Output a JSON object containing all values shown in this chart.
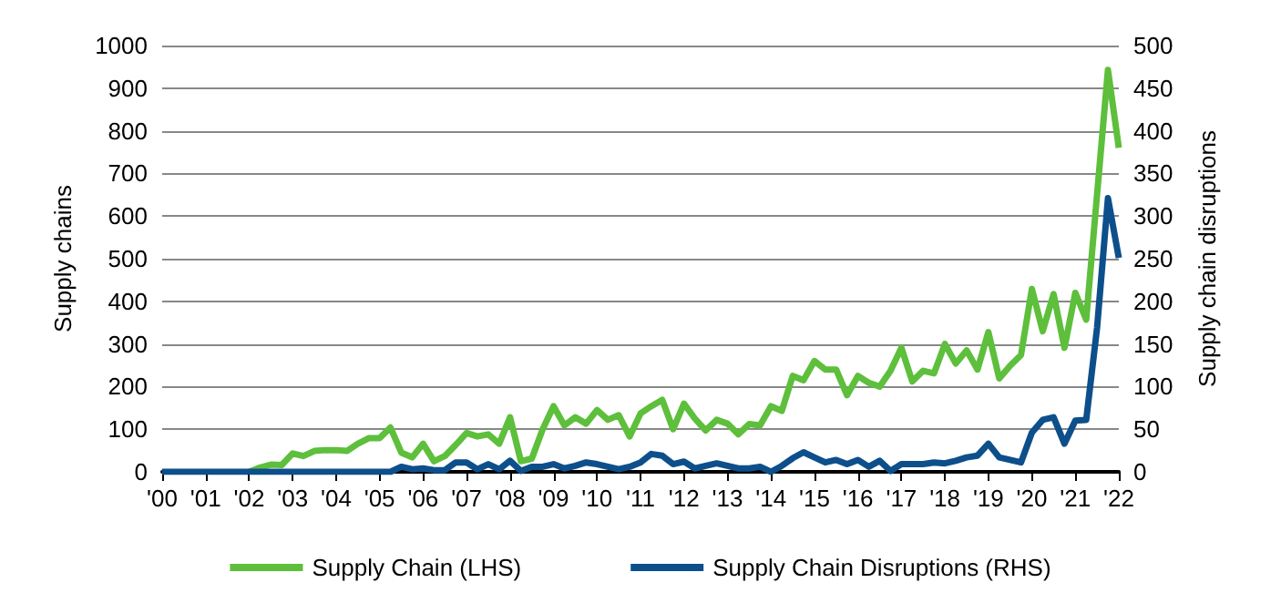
{
  "chart_data": {
    "type": "line",
    "ylabel": "Supply chains",
    "y2label": "Supply chain disruptions",
    "x": [
      2000,
      2000.25,
      2000.5,
      2000.75,
      2001,
      2001.25,
      2001.5,
      2001.75,
      2002,
      2002.25,
      2002.5,
      2002.75,
      2003,
      2003.25,
      2003.5,
      2003.75,
      2004,
      2004.25,
      2004.5,
      2004.75,
      2005,
      2005.25,
      2005.5,
      2005.75,
      2006,
      2006.25,
      2006.5,
      2006.75,
      2007,
      2007.25,
      2007.5,
      2007.75,
      2008,
      2008.25,
      2008.5,
      2008.75,
      2009,
      2009.25,
      2009.5,
      2009.75,
      2010,
      2010.25,
      2010.5,
      2010.75,
      2011,
      2011.25,
      2011.5,
      2011.75,
      2012,
      2012.25,
      2012.5,
      2012.75,
      2013,
      2013.25,
      2013.5,
      2013.75,
      2014,
      2014.25,
      2014.5,
      2014.75,
      2015,
      2015.25,
      2015.5,
      2015.75,
      2016,
      2016.25,
      2016.5,
      2016.75,
      2017,
      2017.25,
      2017.5,
      2017.75,
      2018,
      2018.25,
      2018.5,
      2018.75,
      2019,
      2019.25,
      2019.5,
      2019.75,
      2020,
      2020.25,
      2020.5,
      2020.75,
      2021,
      2021.25,
      2021.5,
      2021.75,
      2022
    ],
    "series": [
      {
        "name": "Supply Chain (LHS)",
        "color": "#5dbf3b",
        "values": [
          null,
          null,
          null,
          null,
          null,
          null,
          null,
          null,
          0,
          10,
          17,
          16,
          43,
          37,
          49,
          51,
          51,
          49,
          66,
          79,
          79,
          104,
          45,
          34,
          66,
          25,
          37,
          63,
          91,
          83,
          88,
          66,
          128,
          25,
          31,
          100,
          154,
          109,
          128,
          113,
          145,
          122,
          133,
          83,
          137,
          154,
          169,
          100,
          160,
          125,
          97,
          122,
          113,
          88,
          112,
          109,
          154,
          143,
          225,
          215,
          260,
          240,
          240,
          180,
          225,
          209,
          200,
          237,
          291,
          212,
          237,
          231,
          300,
          254,
          285,
          240,
          328,
          219,
          249,
          274,
          429,
          330,
          417,
          291,
          420,
          357,
          651,
          943,
          760
        ]
      },
      {
        "name": "Supply Chain Disruptions (RHS)",
        "color": "#0d4f8b",
        "axis": "y2",
        "values": [
          0,
          0,
          0,
          0,
          0,
          0,
          0,
          0,
          0,
          0,
          0,
          0,
          0,
          0,
          0,
          0,
          0,
          0,
          0,
          0,
          0,
          0,
          6,
          3,
          4,
          2,
          2,
          11,
          11,
          3,
          9,
          3,
          13,
          1,
          6,
          6,
          9,
          4,
          7,
          11,
          9,
          6,
          3,
          6,
          11,
          21,
          19,
          9,
          12,
          4,
          7,
          10,
          7,
          4,
          4,
          6,
          0,
          7,
          16,
          23,
          17,
          11,
          14,
          9,
          14,
          6,
          13,
          1,
          9,
          9,
          9,
          11,
          10,
          13,
          17,
          19,
          33,
          17,
          14,
          11,
          46,
          61,
          64,
          33,
          60,
          61,
          169,
          321,
          251
        ]
      }
    ],
    "xlim": [
      2000,
      2022
    ],
    "xticks": [
      {
        "value": 2000,
        "label": "'00"
      },
      {
        "value": 2001,
        "label": "'01"
      },
      {
        "value": 2002,
        "label": "'02"
      },
      {
        "value": 2003,
        "label": "'03"
      },
      {
        "value": 2004,
        "label": "'04"
      },
      {
        "value": 2005,
        "label": "'05"
      },
      {
        "value": 2006,
        "label": "'06"
      },
      {
        "value": 2007,
        "label": "'07"
      },
      {
        "value": 2008,
        "label": "'08"
      },
      {
        "value": 2009,
        "label": "'09"
      },
      {
        "value": 2010,
        "label": "'10"
      },
      {
        "value": 2011,
        "label": "'11"
      },
      {
        "value": 2012,
        "label": "'12"
      },
      {
        "value": 2013,
        "label": "'13"
      },
      {
        "value": 2014,
        "label": "'14"
      },
      {
        "value": 2015,
        "label": "'15"
      },
      {
        "value": 2016,
        "label": "'16"
      },
      {
        "value": 2017,
        "label": "'17"
      },
      {
        "value": 2018,
        "label": "'18"
      },
      {
        "value": 2019,
        "label": "'19"
      },
      {
        "value": 2020,
        "label": "'20"
      },
      {
        "value": 2021,
        "label": "'21"
      },
      {
        "value": 2022,
        "label": "'22"
      }
    ],
    "ylim": [
      0,
      1000
    ],
    "yticks": [
      0,
      100,
      200,
      300,
      400,
      500,
      600,
      700,
      800,
      900,
      1000
    ],
    "y2lim": [
      0,
      500
    ],
    "y2ticks": [
      0,
      50,
      100,
      150,
      200,
      250,
      300,
      350,
      400,
      450,
      500
    ],
    "grid": "y",
    "legend": "bottom",
    "marker": "none",
    "line_style": "solid"
  }
}
